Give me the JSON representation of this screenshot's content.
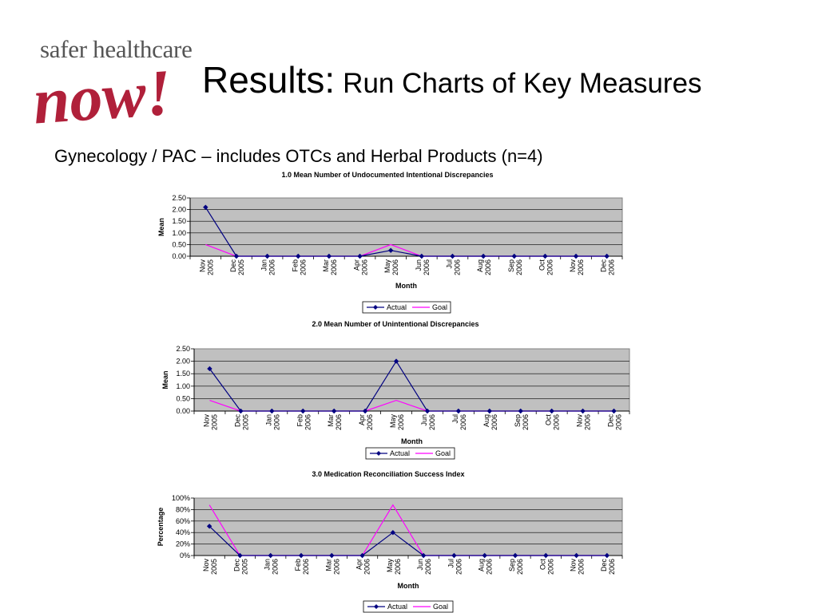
{
  "logo": {
    "top_text": "safer healthcare",
    "word_text": "now!",
    "word_color": "#b0203a"
  },
  "header": {
    "title": "Results:",
    "subtitle": "Run Charts of Key Measures"
  },
  "section": {
    "label": "Gynecology / PAC – includes OTCs and Herbal Products (n=4)"
  },
  "chart_data": [
    {
      "type": "line",
      "title": "1.0 Mean Number of Undocumented Intentional Discrepancies",
      "xlabel": "Month",
      "ylabel": "Mean",
      "ylim": [
        0,
        2.5
      ],
      "yticks": [
        "2.50",
        "2.00",
        "1.50",
        "1.00",
        "0.50",
        "0.00"
      ],
      "grid": true,
      "legend": "bottom",
      "categories": [
        [
          "Nov",
          "2005"
        ],
        [
          "Dec",
          "2005"
        ],
        [
          "Jan",
          "2006"
        ],
        [
          "Feb",
          "2006"
        ],
        [
          "Mar",
          "2006"
        ],
        [
          "Apr",
          "2006"
        ],
        [
          "May",
          "2006"
        ],
        [
          "Jun",
          "2006"
        ],
        [
          "Jul",
          "2006"
        ],
        [
          "Aug",
          "2006"
        ],
        [
          "Sep",
          "2006"
        ],
        [
          "Oct",
          "2006"
        ],
        [
          "Nov",
          "2006"
        ],
        [
          "Dec",
          "2006"
        ]
      ],
      "series": [
        {
          "name": "Actual",
          "color": "#000080",
          "marker": "diamond",
          "values": [
            2.1,
            0,
            0,
            0,
            0,
            0,
            0.25,
            0,
            0,
            0,
            0,
            0,
            0,
            0
          ]
        },
        {
          "name": "Goal",
          "color": "#ff00ff",
          "marker": "none",
          "values": [
            0.5,
            0,
            0,
            0,
            0,
            0,
            0.5,
            0,
            0,
            0,
            0,
            0,
            0,
            0
          ]
        }
      ]
    },
    {
      "type": "line",
      "title": "2.0 Mean Number of Unintentional Discrepancies",
      "xlabel": "Month",
      "ylabel": "Mean",
      "ylim": [
        0,
        2.5
      ],
      "yticks": [
        "2.50",
        "2.00",
        "1.50",
        "1.00",
        "0.50",
        "0.00"
      ],
      "grid": true,
      "legend": "bottom",
      "categories": [
        [
          "Nov",
          "2005"
        ],
        [
          "Dec",
          "2005"
        ],
        [
          "Jan",
          "2006"
        ],
        [
          "Feb",
          "2006"
        ],
        [
          "Mar",
          "2006"
        ],
        [
          "Apr",
          "2006"
        ],
        [
          "May",
          "2006"
        ],
        [
          "Jun",
          "2006"
        ],
        [
          "Jul",
          "2006"
        ],
        [
          "Aug",
          "2006"
        ],
        [
          "Sep",
          "2006"
        ],
        [
          "Oct",
          "2006"
        ],
        [
          "Nov",
          "2006"
        ],
        [
          "Dec",
          "2006"
        ]
      ],
      "series": [
        {
          "name": "Actual",
          "color": "#000080",
          "marker": "diamond",
          "values": [
            1.7,
            0,
            0,
            0,
            0,
            0,
            2.0,
            0,
            0,
            0,
            0,
            0,
            0,
            0
          ]
        },
        {
          "name": "Goal",
          "color": "#ff00ff",
          "marker": "none",
          "values": [
            0.43,
            0,
            0,
            0,
            0,
            0,
            0.43,
            0,
            0,
            0,
            0,
            0,
            0,
            0
          ]
        }
      ]
    },
    {
      "type": "line",
      "title": "3.0 Medication Reconciliation Success Index",
      "xlabel": "Month",
      "ylabel": "Percentage",
      "ylim": [
        0,
        100
      ],
      "yticks": [
        "100%",
        "80%",
        "60%",
        "40%",
        "20%",
        "0%"
      ],
      "grid": true,
      "legend": "bottom",
      "categories": [
        [
          "Nov",
          "2005"
        ],
        [
          "Dec",
          "2005"
        ],
        [
          "Jan",
          "2006"
        ],
        [
          "Feb",
          "2006"
        ],
        [
          "Mar",
          "2006"
        ],
        [
          "Apr",
          "2006"
        ],
        [
          "May",
          "2006"
        ],
        [
          "Jun",
          "2006"
        ],
        [
          "Jul",
          "2006"
        ],
        [
          "Aug",
          "2006"
        ],
        [
          "Sep",
          "2006"
        ],
        [
          "Oct",
          "2006"
        ],
        [
          "Nov",
          "2006"
        ],
        [
          "Dec",
          "2006"
        ]
      ],
      "series": [
        {
          "name": "Actual",
          "color": "#000080",
          "marker": "diamond",
          "values": [
            51,
            0,
            0,
            0,
            0,
            0,
            40,
            0,
            0,
            0,
            0,
            0,
            0,
            0
          ]
        },
        {
          "name": "Goal",
          "color": "#ff00ff",
          "marker": "none",
          "values": [
            88,
            0,
            0,
            0,
            0,
            0,
            88,
            0,
            0,
            0,
            0,
            0,
            0,
            0
          ]
        }
      ]
    }
  ]
}
